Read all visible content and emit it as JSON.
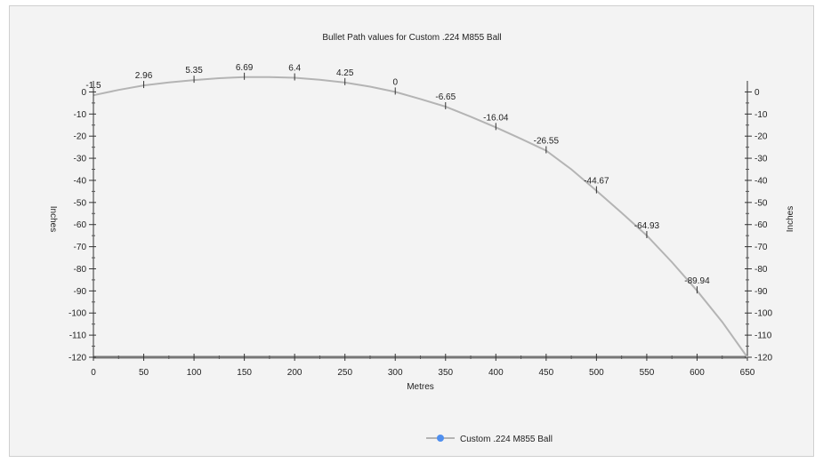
{
  "chart_data": {
    "type": "line",
    "title": "Bullet Path values for Custom .224 M855 Ball",
    "xlabel": "Metres",
    "ylabel": "Inches",
    "ylabel_right": "Inches",
    "xlim": [
      0,
      650
    ],
    "ylim": [
      -120,
      5
    ],
    "x_ticks": [
      0,
      50,
      100,
      150,
      200,
      250,
      300,
      350,
      400,
      450,
      500,
      550,
      600,
      650
    ],
    "y_ticks": [
      0,
      -10,
      -20,
      -30,
      -40,
      -50,
      -60,
      -70,
      -80,
      -90,
      -100,
      -110,
      -120
    ],
    "legend_position": "bottom",
    "grid": false,
    "series": [
      {
        "name": "Custom .224 M855 Ball",
        "color": "#b4b4b4",
        "marker_color": "#4f8fef",
        "x": [
          0,
          25,
          50,
          75,
          100,
          125,
          150,
          175,
          200,
          225,
          250,
          275,
          300,
          325,
          350,
          375,
          400,
          425,
          450,
          475,
          500,
          525,
          550,
          575,
          600,
          625,
          650
        ],
        "y": [
          -1.5,
          0.9,
          2.96,
          4.3,
          5.35,
          6.2,
          6.69,
          6.7,
          6.4,
          5.5,
          4.25,
          2.4,
          0,
          -3.2,
          -6.65,
          -11.2,
          -16.04,
          -21.2,
          -26.55,
          -35.0,
          -44.67,
          -54.7,
          -64.93,
          -77.0,
          -89.94,
          -104.0,
          -120
        ]
      }
    ],
    "data_labels": [
      {
        "x": 0,
        "y": -1.5,
        "text": "-1.5"
      },
      {
        "x": 50,
        "y": 2.96,
        "text": "2.96"
      },
      {
        "x": 100,
        "y": 5.35,
        "text": "5.35"
      },
      {
        "x": 150,
        "y": 6.69,
        "text": "6.69"
      },
      {
        "x": 200,
        "y": 6.4,
        "text": "6.4"
      },
      {
        "x": 250,
        "y": 4.25,
        "text": "4.25"
      },
      {
        "x": 300,
        "y": 0,
        "text": "0"
      },
      {
        "x": 350,
        "y": -6.65,
        "text": "-6.65"
      },
      {
        "x": 400,
        "y": -16.04,
        "text": "-16.04"
      },
      {
        "x": 450,
        "y": -26.55,
        "text": "-26.55"
      },
      {
        "x": 500,
        "y": -44.67,
        "text": "-44.67"
      },
      {
        "x": 550,
        "y": -64.93,
        "text": "-64.93"
      },
      {
        "x": 600,
        "y": -89.94,
        "text": "-89.94"
      }
    ]
  }
}
